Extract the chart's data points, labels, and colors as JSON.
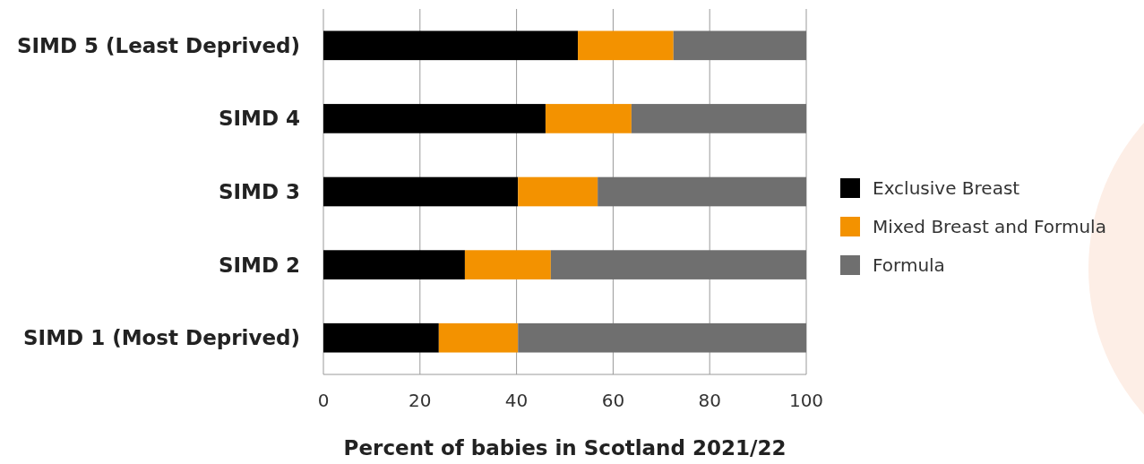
{
  "chart_data": {
    "type": "bar",
    "orientation": "horizontal",
    "stacked": true,
    "categories": [
      "SIMD 5 (Least Deprived)",
      "SIMD 4",
      "SIMD 3",
      "SIMD 2",
      "SIMD 1 (Most Deprived)"
    ],
    "series": [
      {
        "name": "Exclusive Breast",
        "color": "#000000",
        "values": [
          52.7,
          46,
          40.3,
          29.3,
          23.9
        ]
      },
      {
        "name": "Mixed Breast and Formula",
        "color": "#f39200",
        "values": [
          19.8,
          17.8,
          16.5,
          17.8,
          16.4
        ]
      },
      {
        "name": "Formula",
        "color": "#6f6f6f",
        "values": [
          27.5,
          36.2,
          43.2,
          52.9,
          59.7
        ]
      }
    ],
    "xlim": [
      0,
      100
    ],
    "xticks": [
      0,
      20,
      40,
      60,
      80,
      100
    ],
    "xlabel": "Percent of babies in Scotland 2021/22",
    "grid": "x",
    "legend": "right"
  }
}
